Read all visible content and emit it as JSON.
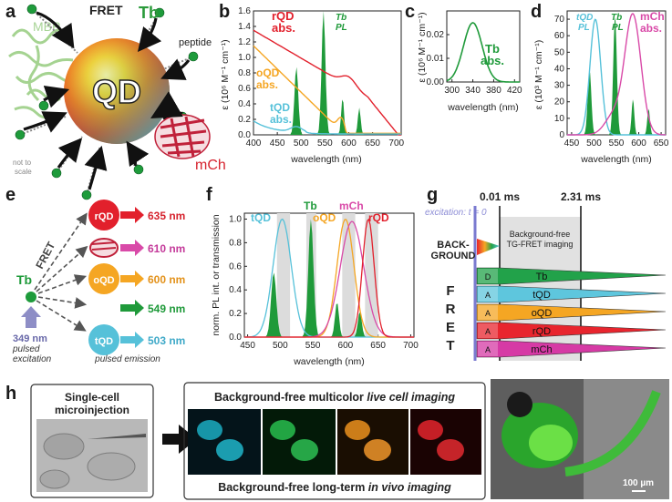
{
  "panels": {
    "a": {
      "label": "a",
      "qd": "QD",
      "mbp": "MBP",
      "fret": "FRET",
      "tb": "Tb",
      "peptide": "peptide",
      "mch": "mCh",
      "not_to": "not to",
      "scale": "scale"
    },
    "b": {
      "label": "b",
      "rqd": [
        "rQD",
        "abs."
      ],
      "tbpl": [
        "Tb",
        "PL"
      ],
      "oqd": [
        "oQD",
        "abs."
      ],
      "tqd": [
        "tQD",
        "abs."
      ],
      "ylabel": "ε (10⁶ M⁻¹ cm⁻¹)",
      "xlabel": "wavelength (nm)",
      "xticks": [
        "400",
        "450",
        "500",
        "550",
        "600",
        "650",
        "700"
      ],
      "yticks": [
        "0.0",
        "0.2",
        "0.4",
        "0.6",
        "0.8",
        "1.0",
        "1.2",
        "1.4",
        "1.6"
      ]
    },
    "c": {
      "label": "c",
      "title": [
        "Tb",
        "abs."
      ],
      "ylabel": "ε (10⁶ M⁻¹ cm⁻¹)",
      "xlabel": "wavelength (nm)",
      "xticks": [
        "300",
        "340",
        "380",
        "420"
      ],
      "yticks": [
        "0.00",
        "0.01",
        "0.02"
      ]
    },
    "d": {
      "label": "d",
      "tqdpl": [
        "tQD",
        "PL"
      ],
      "tbpl": [
        "Tb",
        "PL"
      ],
      "mch": [
        "mCh",
        "abs."
      ],
      "ylabel": "ε (10³ M⁻¹ cm⁻¹)",
      "xlabel": "wavelength (nm)",
      "xticks": [
        "450",
        "500",
        "550",
        "600",
        "650"
      ],
      "yticks": [
        "0",
        "10",
        "20",
        "30",
        "40",
        "50",
        "60",
        "70"
      ]
    },
    "e": {
      "label": "e",
      "tb": "Tb",
      "fret": "FRET",
      "excitation_nm": "349 nm",
      "pulsed": "pulsed",
      "excitation": "excitation",
      "pulsed_emission": "pulsed emission",
      "nodes": [
        {
          "name": "rQD",
          "nm": "635 nm"
        },
        {
          "name": "",
          "nm": "610 nm"
        },
        {
          "name": "oQD",
          "nm": "600 nm"
        },
        {
          "name": "",
          "nm": "549 nm"
        },
        {
          "name": "tQD",
          "nm": "503 nm"
        }
      ]
    },
    "f": {
      "label": "f",
      "labels": [
        "tQD",
        "Tb",
        "oQD",
        "mCh",
        "rQD"
      ],
      "ylabel": "norm. PL int. or transmission",
      "xlabel": "wavelength (nm)",
      "xticks": [
        "450",
        "500",
        "550",
        "600",
        "650",
        "700"
      ],
      "yticks": [
        "0.0",
        "0.2",
        "0.4",
        "0.6",
        "0.8",
        "1.0"
      ]
    },
    "g": {
      "label": "g",
      "t1": "0.01 ms",
      "t2": "2.31 ms",
      "excitation": "excitation: t = 0",
      "background": [
        "BACK-",
        "GROUND"
      ],
      "bgfree": [
        "Background-free",
        "TG-FRET imaging"
      ],
      "fret_letters": [
        "F",
        "R",
        "E",
        "T"
      ],
      "rows": [
        {
          "tag": "D",
          "name": "Tb",
          "color": "#22a24a"
        },
        {
          "tag": "A",
          "name": "tQD",
          "color": "#5ec6dd"
        },
        {
          "tag": "A",
          "name": "oQD",
          "color": "#f5a623"
        },
        {
          "tag": "A",
          "name": "rQD",
          "color": "#e8252e"
        },
        {
          "tag": "A",
          "name": "mCh",
          "color": "#d63aa5"
        }
      ]
    },
    "h": {
      "label": "h",
      "single": [
        "Single-cell",
        "microinjection"
      ],
      "live": [
        "Background-free multicolor ",
        "live cell imaging"
      ],
      "vivo": [
        "Background-free long-term ",
        "in vivo imaging"
      ],
      "scalebar": "100 µm"
    }
  },
  "colors": {
    "tb": "#1f9a3a",
    "tqd": "#56c1d9",
    "oqd": "#f5a623",
    "rqd": "#e2202c",
    "mch": "#d94aa8"
  }
}
